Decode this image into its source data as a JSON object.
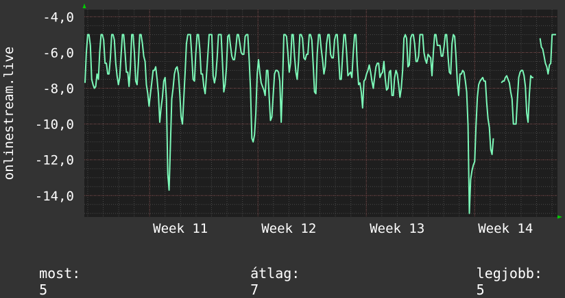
{
  "chart_data": {
    "type": "line",
    "title": "",
    "ylabel": "onlinestream.live",
    "xlabel": "",
    "ylim": [
      -15.2,
      -3.6
    ],
    "yticks": [
      -14,
      -12,
      -10,
      -8,
      -6,
      -4
    ],
    "ytick_labels": [
      "-14,0",
      "-12,0",
      "-10,0",
      "-8,0",
      "-6,0",
      "-4,0"
    ],
    "x_range": [
      0,
      100
    ],
    "xticks": [
      {
        "x": 13.8,
        "label": "Week 11"
      },
      {
        "x": 36.7,
        "label": "Week 12"
      },
      {
        "x": 59.6,
        "label": "Week 13"
      },
      {
        "x": 82.5,
        "label": "Week 14"
      }
    ],
    "grid": true,
    "colors": {
      "background": "#333333",
      "plot": "#1e1e1e",
      "line": "#7cf8b8",
      "grid": "#4a4a4a",
      "axis_arrow": "#00cc00"
    },
    "series": [
      {
        "values": [
          -7.7,
          -6,
          -5,
          -5,
          -5.6,
          -7.5,
          -7.8,
          -8,
          -7.9,
          -7.2,
          -7.5,
          -6,
          -5,
          -5,
          -5.3,
          -6.6,
          -6.6,
          -7.2,
          -7.2,
          -6.3,
          -5,
          -5,
          -5.3,
          -6.6,
          -7.3,
          -7.8,
          -7.4,
          -6.2,
          -5,
          -5,
          -6,
          -7.1,
          -7.1,
          -7.9,
          -6.8,
          -5,
          -5,
          -6,
          -7.6,
          -7.8,
          -6.6,
          -5,
          -5,
          -5.5,
          -6.2,
          -6.5,
          -7.8,
          -8.3,
          -9,
          -8.3,
          -7.7,
          -7,
          -7,
          -6.8,
          -7.5,
          -8.3,
          -9.9,
          -9.1,
          -8.5,
          -7.6,
          -7.4,
          -8.6,
          -12.8,
          -13.7,
          -11.1,
          -8.6,
          -8,
          -7.2,
          -6.9,
          -6.8,
          -7.2,
          -8.3,
          -9.6,
          -10,
          -8.6,
          -7.1,
          -5.5,
          -5,
          -5,
          -5,
          -6.2,
          -7.5,
          -7.6,
          -6.1,
          -5,
          -5,
          -5.8,
          -7.2,
          -7.2,
          -7.9,
          -8.3,
          -7.3,
          -6.2,
          -5,
          -5,
          -5,
          -7.3,
          -7.7,
          -7.3,
          -6.3,
          -5,
          -5,
          -5,
          -6.6,
          -8.2,
          -7.8,
          -6.8,
          -5.1,
          -5,
          -5.6,
          -6.2,
          -6.4,
          -6.4,
          -5.8,
          -5,
          -5,
          -5.5,
          -6,
          -6.1,
          -6.1,
          -5.1,
          -5,
          -5,
          -6.4,
          -8,
          -10.8,
          -11,
          -10.6,
          -9.4,
          -7.2,
          -6.4,
          -7.1,
          -7.7,
          -7.9,
          -8.1,
          -8.4,
          -7,
          -7,
          -8.5,
          -9.8,
          -9.6,
          -8.4,
          -7.2,
          -7,
          -7,
          -7.1,
          -7.6,
          -9.9,
          -7.8,
          -5,
          -5,
          -5.1,
          -6,
          -7.1,
          -6.6,
          -5,
          -5,
          -6.2,
          -7.1,
          -7.5,
          -6.5,
          -5,
          -5,
          -5.2,
          -6.3,
          -6.4,
          -6.1,
          -6.1,
          -5,
          -5,
          -5.3,
          -6.7,
          -8.2,
          -8.3,
          -6.1,
          -5,
          -5,
          -5.8,
          -6.4,
          -7.2,
          -6.8,
          -5.5,
          -5,
          -5,
          -6.1,
          -6.3,
          -6.3,
          -5.3,
          -5,
          -5,
          -6.2,
          -7.5,
          -7.5,
          -6.2,
          -5,
          -5,
          -6,
          -7.3,
          -7.2,
          -7.1,
          -7.4,
          -6,
          -5,
          -5,
          -6.7,
          -7.8,
          -7.7,
          -8.2,
          -9.1,
          -7.6,
          -7.5,
          -7.2,
          -7,
          -6.7,
          -7.1,
          -7.6,
          -8,
          -7.4,
          -6.8,
          -6.6,
          -6.6,
          -7.4,
          -7.2,
          -7.1,
          -6.5,
          -7.5,
          -8.1,
          -8,
          -7.1,
          -7,
          -8.4,
          -8.4,
          -7.4,
          -7,
          -7.2,
          -7.8,
          -8.5,
          -8,
          -7,
          -5.2,
          -5,
          -5.2,
          -6.8,
          -6.7,
          -5.2,
          -5,
          -5,
          -5.5,
          -6.5,
          -6.5,
          -6.2,
          -5,
          -5,
          -5,
          -6,
          -6.4,
          -6.6,
          -6.1,
          -6.2,
          -6.3,
          -7.3,
          -6,
          -5,
          -5,
          -5.6,
          -5.6,
          -5.6,
          -6.2,
          -6.2,
          -5.7,
          -5,
          -5,
          -6.2,
          -7.1,
          -7.2,
          -5.5,
          -5,
          -5.1,
          -6.2,
          -7.7,
          -8.4,
          -7.2,
          -7.2,
          -7,
          -7.1,
          -7.6,
          -8.2,
          -10.1,
          -15,
          -13.1,
          -12.6,
          -12.3,
          -12.1,
          -10.1,
          -8.5,
          -7.8,
          -7.6,
          -7.5,
          -7.4,
          -7.6,
          -7.6,
          -8.8,
          -9.7,
          -10.2,
          -11.4,
          -11.7,
          -10.8
        ],
        "segment2": [
          -7.7,
          -7.6,
          -7.6,
          -7.4,
          -7.3,
          -7.5,
          -7.7,
          -8.2,
          -8.6,
          -10,
          -10,
          -10,
          -8.6,
          -7.4,
          -7.1,
          -7,
          -7,
          -7.3,
          -7.9,
          -9.4,
          -9.9,
          -8.3,
          -7.3,
          -7.4,
          -7.4
        ],
        "segment3": [
          -5.2,
          -5.7,
          -5.8,
          -6.2,
          -6.6,
          -6.8,
          -7.2,
          -6.7,
          -6.6,
          -5,
          -5,
          -5,
          -5
        ]
      }
    ]
  },
  "footer": {
    "most_label": "most:",
    "most_value": "5",
    "atlag_label": "átlag:",
    "atlag_value": "7",
    "legjobb_label": "legjobb:",
    "legjobb_value": "5"
  }
}
